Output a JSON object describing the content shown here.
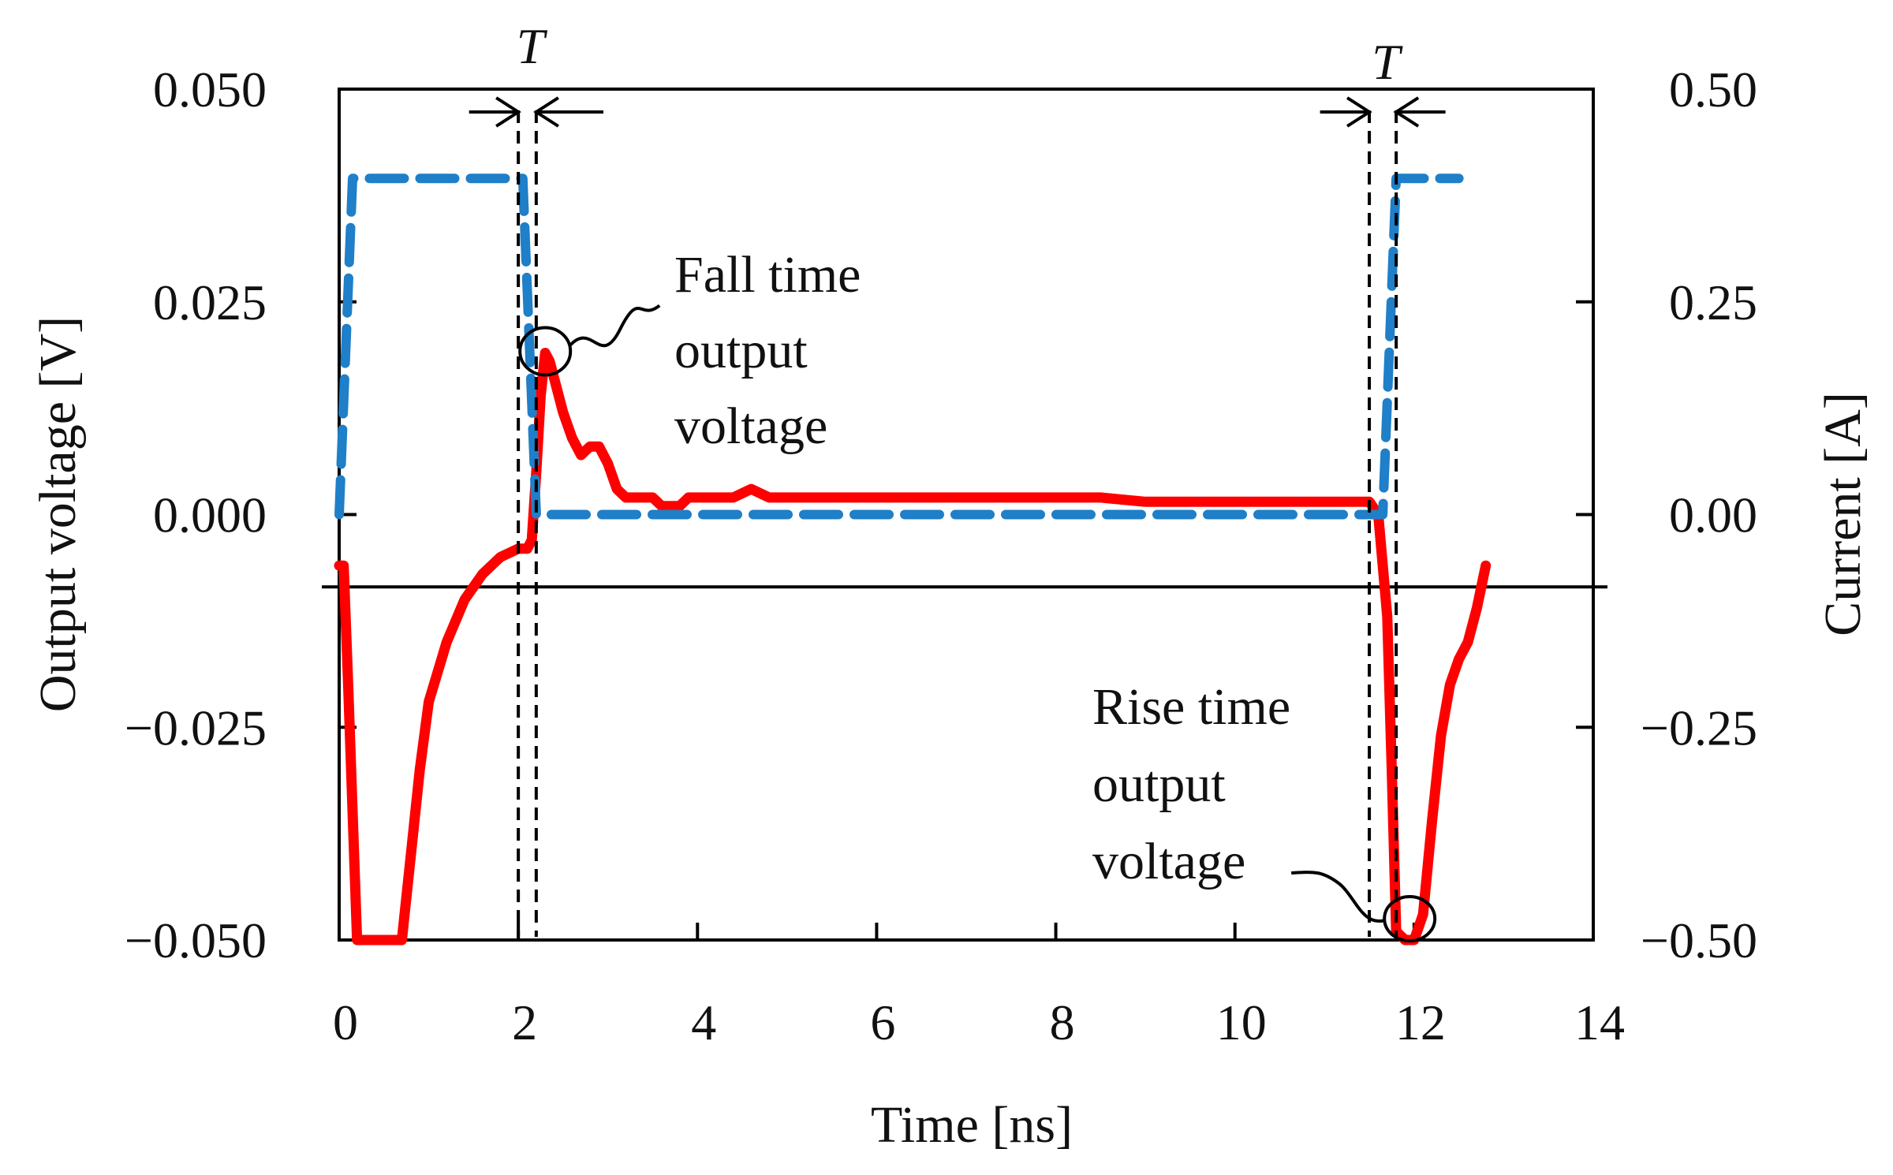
{
  "chart_data": {
    "type": "line",
    "title": "",
    "xlabel": "Time [ns]",
    "ylabel_left": "Output voltage [V]",
    "ylabel_right": "Current [A]",
    "xlim": [
      0,
      14
    ],
    "ylim_left": [
      -0.05,
      0.05
    ],
    "ylim_right": [
      -0.5,
      0.5
    ],
    "x_ticks": [
      0,
      2,
      4,
      6,
      8,
      10,
      12,
      14
    ],
    "x_tick_labels": [
      "0",
      "2",
      "4",
      "6",
      "8",
      "10",
      "12",
      "14"
    ],
    "y_left_ticks": [
      -0.05,
      -0.025,
      0,
      0.025,
      0.05
    ],
    "y_left_tick_labels": [
      "−0.050",
      "−0.025",
      "0.000",
      "0.025",
      "0.050"
    ],
    "y_right_ticks": [
      -0.5,
      -0.25,
      0,
      0.25,
      0.5
    ],
    "y_right_tick_labels": [
      "−0.50",
      "−0.25",
      "0.00",
      "0.25",
      "0.50"
    ],
    "grid": false,
    "reference_line_y_left": -0.0085,
    "series": [
      {
        "name": "Output voltage",
        "axis": "left",
        "color": "#ff0000",
        "style": "solid",
        "x": [
          0.0,
          0.05,
          0.1,
          0.2,
          0.3,
          0.45,
          0.6,
          0.7,
          0.8,
          0.9,
          1.0,
          1.2,
          1.4,
          1.6,
          1.8,
          2.0,
          2.1,
          2.15,
          2.2,
          2.25,
          2.3,
          2.35,
          2.4,
          2.5,
          2.6,
          2.7,
          2.8,
          2.9,
          3.0,
          3.1,
          3.2,
          3.3,
          3.4,
          3.5,
          3.6,
          3.7,
          3.8,
          3.9,
          4.0,
          4.2,
          4.4,
          4.6,
          4.8,
          5.0,
          5.3,
          5.6,
          6.0,
          6.5,
          7.0,
          7.5,
          8.0,
          8.5,
          9.0,
          9.5,
          10.0,
          10.5,
          11.0,
          11.3,
          11.5,
          11.6,
          11.7,
          11.75,
          11.8,
          11.9,
          12.0,
          12.1,
          12.2,
          12.3,
          12.4,
          12.5,
          12.6,
          12.7,
          12.8
        ],
        "values": [
          -0.006,
          -0.006,
          -0.02,
          -0.05,
          -0.05,
          -0.05,
          -0.05,
          -0.05,
          -0.04,
          -0.03,
          -0.022,
          -0.015,
          -0.01,
          -0.007,
          -0.005,
          -0.004,
          -0.004,
          -0.003,
          0.005,
          0.014,
          0.019,
          0.018,
          0.016,
          0.012,
          0.009,
          0.007,
          0.008,
          0.008,
          0.006,
          0.003,
          0.002,
          0.002,
          0.002,
          0.002,
          0.001,
          0.001,
          0.001,
          0.002,
          0.002,
          0.002,
          0.002,
          0.003,
          0.002,
          0.002,
          0.002,
          0.002,
          0.002,
          0.002,
          0.002,
          0.002,
          0.002,
          0.002,
          0.0015,
          0.0015,
          0.0015,
          0.0015,
          0.0015,
          0.0015,
          0.0015,
          0.0,
          -0.012,
          -0.03,
          -0.049,
          -0.05,
          -0.05,
          -0.047,
          -0.036,
          -0.026,
          -0.02,
          -0.017,
          -0.015,
          -0.011,
          -0.006
        ]
      },
      {
        "name": "Current",
        "axis": "right",
        "color": "#1f7fc8",
        "style": "dashed",
        "x": [
          0.0,
          0.15,
          0.3,
          2.05,
          2.2,
          11.5,
          11.65,
          11.8,
          12.5
        ],
        "values": [
          0.0,
          0.395,
          0.395,
          0.395,
          0.0,
          0.0,
          0.0,
          0.395,
          0.395
        ]
      }
    ],
    "marker_lines_x": [
      2.0,
      2.2,
      11.5,
      11.8
    ],
    "annotations": {
      "T_label": "T",
      "fall": [
        "Fall time",
        "output",
        "voltage"
      ],
      "rise": [
        "Rise time",
        "output",
        "voltage"
      ]
    },
    "highlight_points": [
      {
        "name": "fall-peak",
        "x": 2.3,
        "y": 0.019
      },
      {
        "name": "rise-dip",
        "x": 11.95,
        "y": -0.0475
      }
    ]
  }
}
